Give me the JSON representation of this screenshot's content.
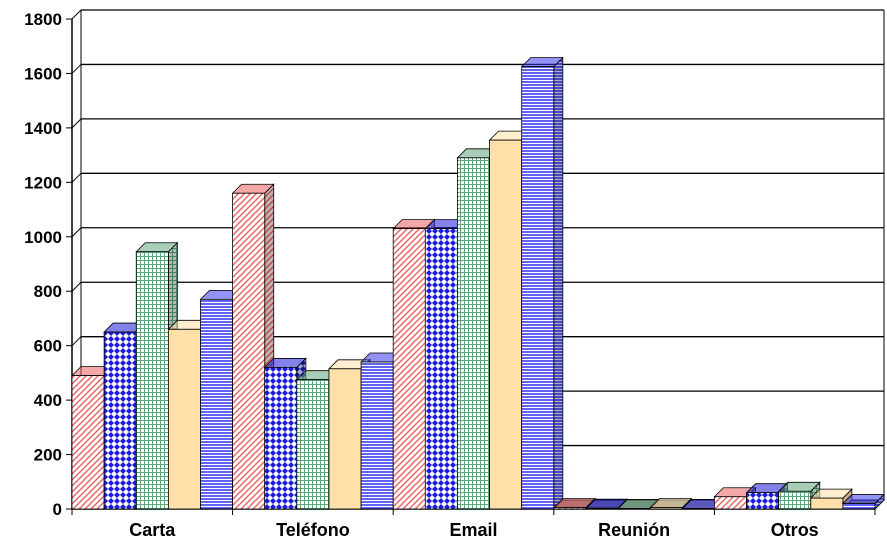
{
  "chart_data": {
    "type": "bar",
    "style": "3d-clustered-column",
    "categories": [
      "Carta",
      "Teléfono",
      "Email",
      "Reunión",
      "Otros"
    ],
    "series": [
      {
        "values": [
          490,
          1160,
          1030,
          5,
          45
        ],
        "color": "#e96060",
        "pattern": "diagonal-hatch"
      },
      {
        "values": [
          650,
          520,
          1030,
          3,
          60
        ],
        "color": "#1c1cd8",
        "pattern": "diamond-dots"
      },
      {
        "values": [
          945,
          475,
          1290,
          2,
          65
        ],
        "color": "#5fa67a",
        "pattern": "grid"
      },
      {
        "values": [
          660,
          515,
          1355,
          5,
          40
        ],
        "color": "#ffe0a8",
        "pattern": "solid"
      },
      {
        "values": [
          770,
          540,
          1625,
          2,
          20
        ],
        "color": "#3a3af0",
        "pattern": "horizontal-lines"
      }
    ],
    "ylim": [
      0,
      1800
    ],
    "y_ticks": [
      "0",
      "200",
      "400",
      "600",
      "800",
      "1000",
      "1200",
      "1400",
      "1600",
      "1800"
    ],
    "grid": true,
    "legend": "none",
    "floor_color": "#808080"
  }
}
